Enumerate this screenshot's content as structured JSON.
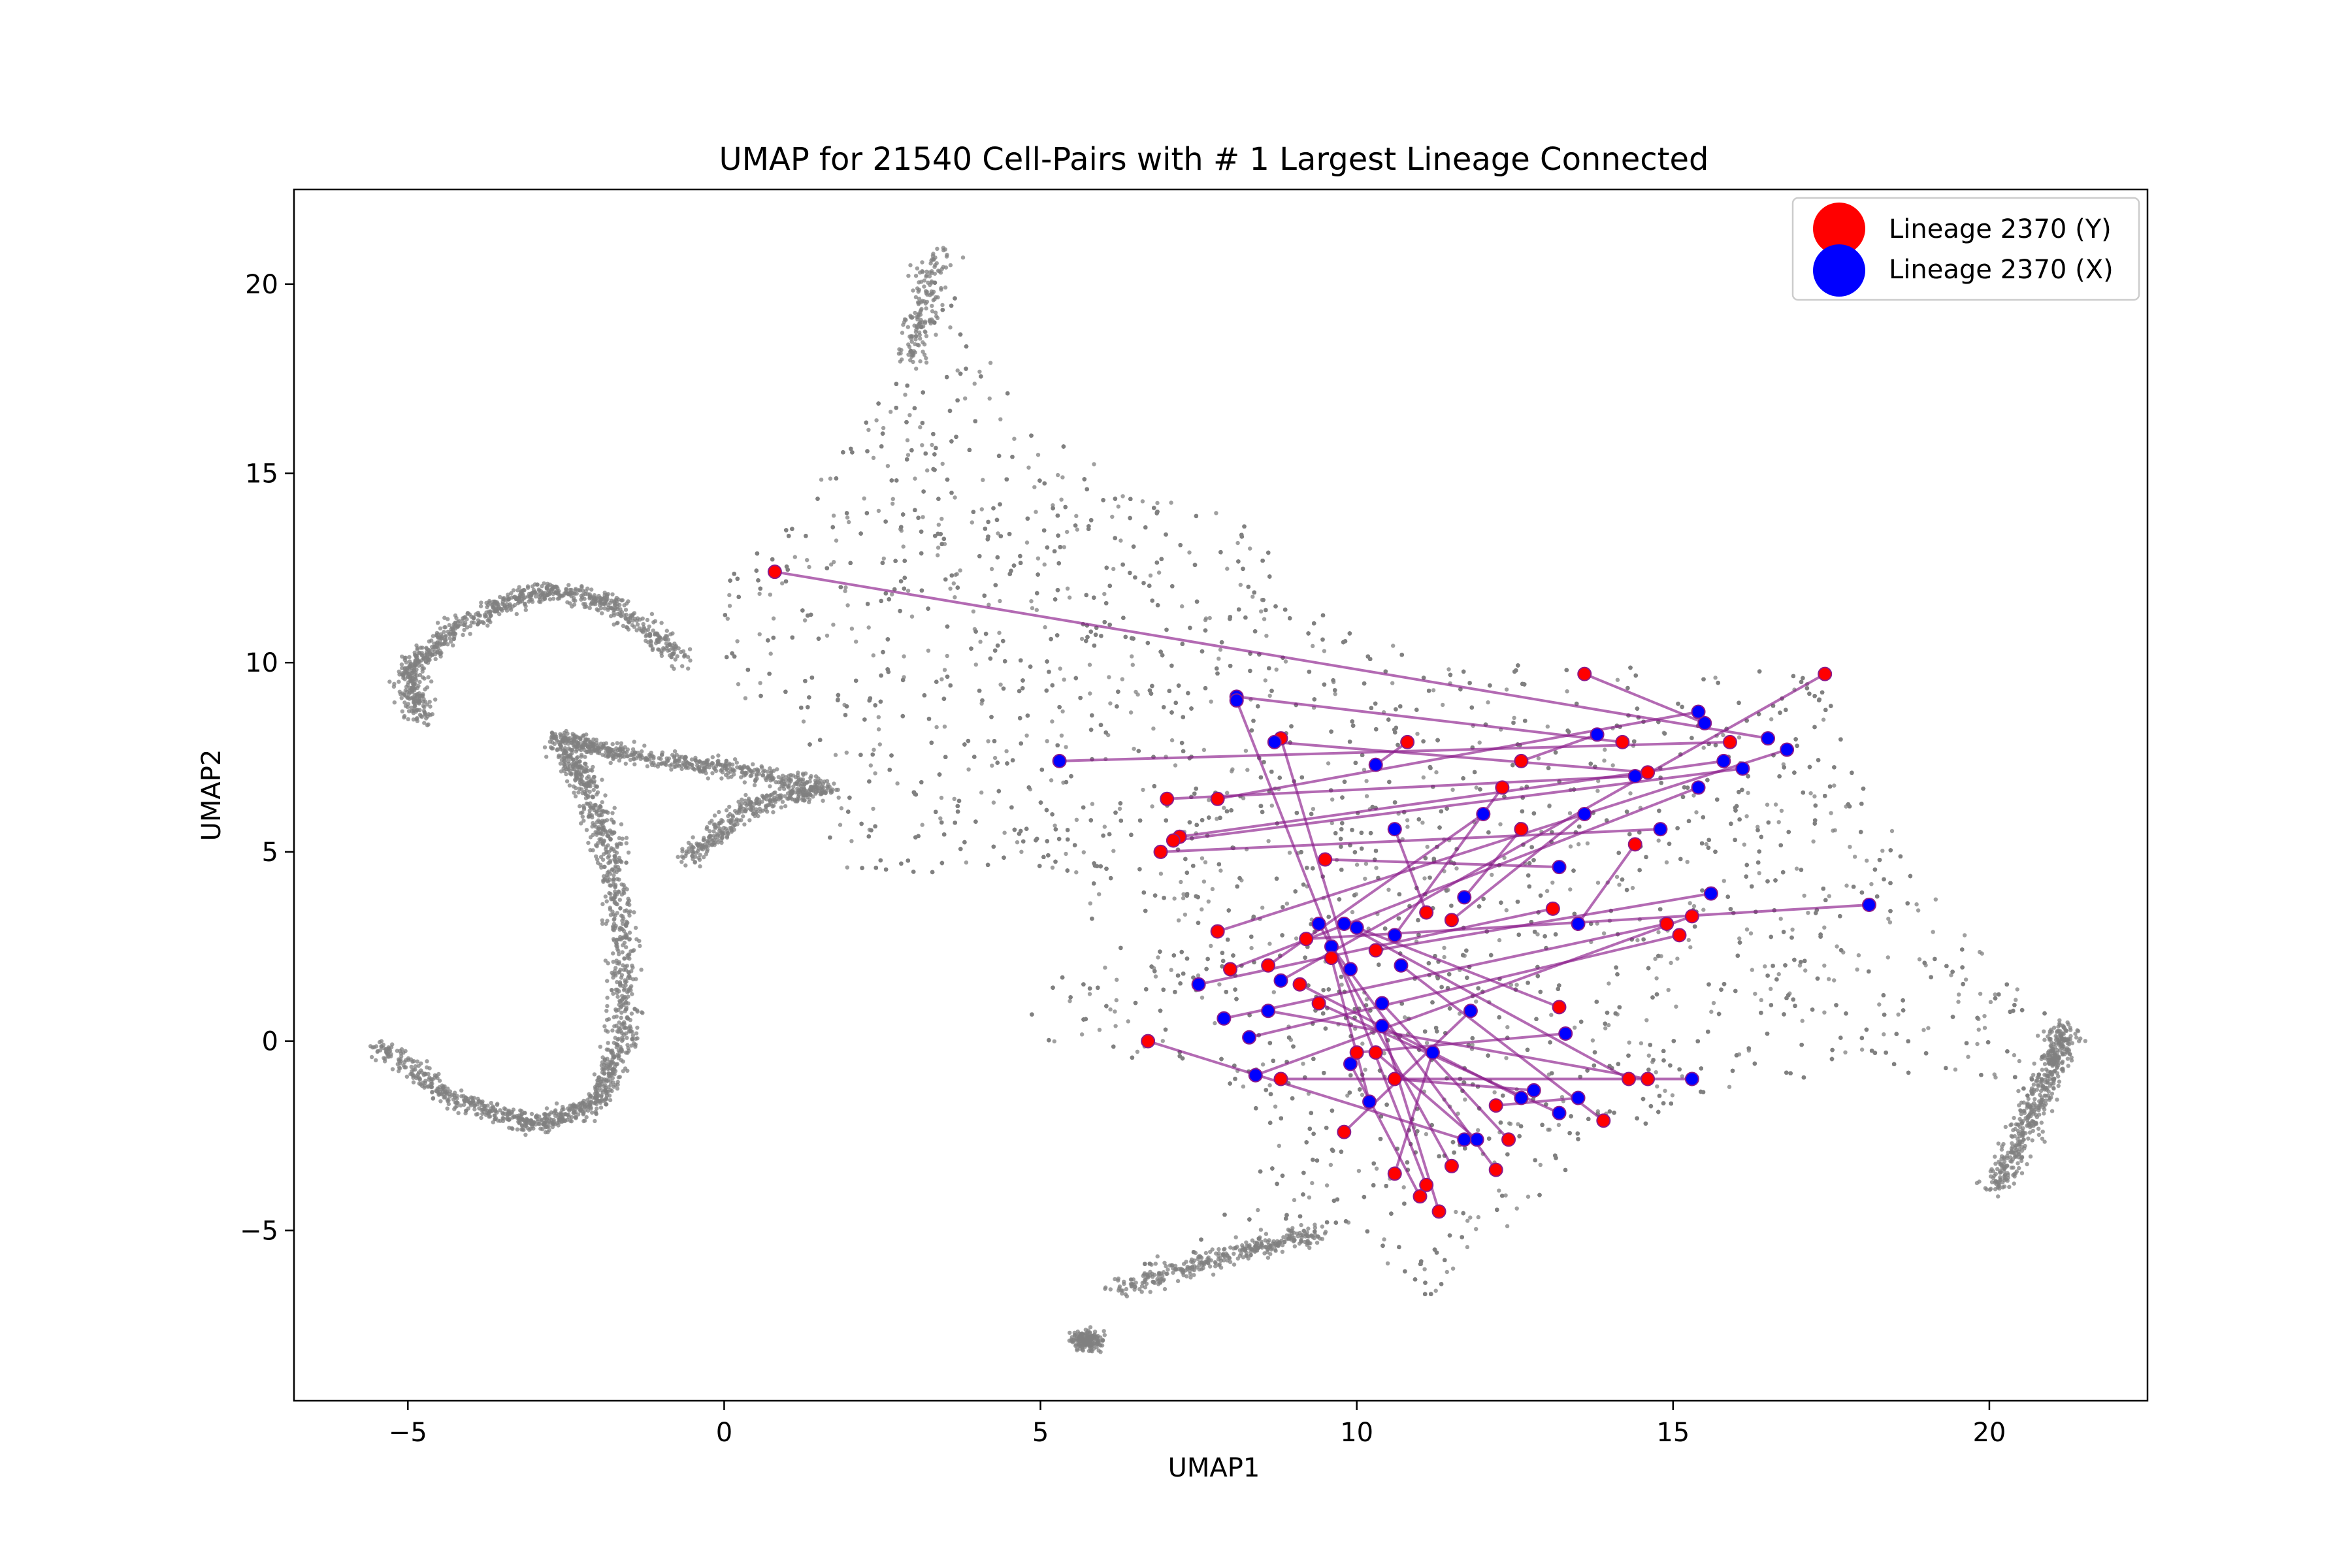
{
  "chart_data": {
    "type": "scatter",
    "title": "UMAP for 21540 Cell-Pairs with # 1 Largest Lineage Connected",
    "xlabel": "UMAP1",
    "ylabel": "UMAP2",
    "xlim": [
      -6.8,
      22.5
    ],
    "ylim": [
      -9.5,
      22.5
    ],
    "xticks": [
      -5,
      0,
      5,
      10,
      15,
      20
    ],
    "yticks": [
      -5,
      0,
      5,
      10,
      15,
      20
    ],
    "xtick_labels": [
      "−5",
      "0",
      "5",
      "10",
      "15",
      "20"
    ],
    "ytick_labels": [
      "−5",
      "0",
      "5",
      "10",
      "15",
      "20"
    ],
    "legend_position": "top-right",
    "background": {
      "description_color": "#808080",
      "cell_count": 21540
    },
    "series": [
      {
        "name": "Lineage 2370 (Y)",
        "color": "#ff0000"
      },
      {
        "name": "Lineage 2370 (X)",
        "color": "#0000ff"
      }
    ],
    "connector_color": "#8b1a8b",
    "pairs": [
      {
        "y": [
          0.8,
          12.4
        ],
        "x": [
          16.5,
          8.0
        ]
      },
      {
        "y": [
          17.4,
          9.7
        ],
        "x": [
          8.8,
          1.6
        ]
      },
      {
        "y": [
          13.6,
          9.7
        ],
        "x": [
          15.5,
          8.4
        ]
      },
      {
        "y": [
          8.8,
          8.0
        ],
        "x": [
          9.9,
          1.9
        ]
      },
      {
        "y": [
          10.8,
          7.9
        ],
        "x": [
          10.3,
          7.3
        ]
      },
      {
        "y": [
          7.0,
          6.4
        ],
        "x": [
          14.4,
          7.0
        ]
      },
      {
        "y": [
          7.8,
          6.4
        ],
        "x": [
          15.4,
          8.7
        ]
      },
      {
        "y": [
          7.2,
          5.4
        ],
        "x": [
          15.8,
          7.4
        ]
      },
      {
        "y": [
          6.9,
          5.0
        ],
        "x": [
          14.8,
          5.6
        ]
      },
      {
        "y": [
          7.1,
          5.3
        ],
        "x": [
          16.1,
          7.2
        ]
      },
      {
        "y": [
          9.5,
          4.8
        ],
        "x": [
          13.2,
          4.6
        ]
      },
      {
        "y": [
          12.6,
          7.4
        ],
        "x": [
          13.8,
          8.1
        ]
      },
      {
        "y": [
          14.6,
          7.1
        ],
        "x": [
          8.7,
          7.9
        ]
      },
      {
        "y": [
          14.2,
          7.9
        ],
        "x": [
          8.1,
          9.1
        ]
      },
      {
        "y": [
          15.9,
          7.9
        ],
        "x": [
          5.3,
          7.4
        ]
      },
      {
        "y": [
          7.8,
          2.9
        ],
        "x": [
          16.8,
          7.7
        ]
      },
      {
        "y": [
          8.0,
          1.9
        ],
        "x": [
          15.4,
          6.7
        ]
      },
      {
        "y": [
          8.6,
          2.0
        ],
        "x": [
          12.0,
          6.0
        ]
      },
      {
        "y": [
          9.2,
          2.7
        ],
        "x": [
          18.1,
          3.6
        ]
      },
      {
        "y": [
          10.3,
          2.4
        ],
        "x": [
          15.6,
          3.9
        ]
      },
      {
        "y": [
          11.1,
          3.4
        ],
        "x": [
          10.6,
          5.6
        ]
      },
      {
        "y": [
          11.5,
          3.2
        ],
        "x": [
          13.6,
          6.0
        ]
      },
      {
        "y": [
          12.3,
          6.7
        ],
        "x": [
          10.6,
          2.8
        ]
      },
      {
        "y": [
          12.6,
          5.6
        ],
        "x": [
          11.7,
          3.8
        ]
      },
      {
        "y": [
          13.1,
          3.5
        ],
        "x": [
          7.5,
          1.5
        ]
      },
      {
        "y": [
          14.4,
          5.2
        ],
        "x": [
          13.5,
          3.1
        ]
      },
      {
        "y": [
          14.9,
          3.1
        ],
        "x": [
          7.9,
          0.6
        ]
      },
      {
        "y": [
          15.1,
          2.8
        ],
        "x": [
          8.3,
          0.1
        ]
      },
      {
        "y": [
          15.3,
          3.3
        ],
        "x": [
          8.4,
          -0.9
        ]
      },
      {
        "y": [
          13.2,
          0.9
        ],
        "x": [
          10.0,
          3.0
        ]
      },
      {
        "y": [
          14.3,
          -1.0
        ],
        "x": [
          9.8,
          3.1
        ]
      },
      {
        "y": [
          14.6,
          -1.0
        ],
        "x": [
          8.6,
          0.8
        ]
      },
      {
        "y": [
          13.9,
          -2.1
        ],
        "x": [
          10.7,
          2.0
        ]
      },
      {
        "y": [
          12.4,
          -2.6
        ],
        "x": [
          10.4,
          1.0
        ]
      },
      {
        "y": [
          12.2,
          -3.4
        ],
        "x": [
          9.6,
          2.5
        ]
      },
      {
        "y": [
          11.5,
          -3.3
        ],
        "x": [
          9.4,
          3.1
        ]
      },
      {
        "y": [
          11.1,
          -3.8
        ],
        "x": [
          8.1,
          9.0
        ]
      },
      {
        "y": [
          11.3,
          -4.5
        ],
        "x": [
          10.4,
          0.4
        ]
      },
      {
        "y": [
          11.0,
          -4.1
        ],
        "x": [
          9.9,
          -0.6
        ]
      },
      {
        "y": [
          10.6,
          -3.5
        ],
        "x": [
          11.2,
          -0.3
        ]
      },
      {
        "y": [
          9.8,
          -2.4
        ],
        "x": [
          11.8,
          0.8
        ]
      },
      {
        "y": [
          10.3,
          -0.3
        ],
        "x": [
          11.9,
          -2.6
        ]
      },
      {
        "y": [
          10.6,
          -1.0
        ],
        "x": [
          12.8,
          -1.3
        ]
      },
      {
        "y": [
          12.2,
          -1.7
        ],
        "x": [
          13.5,
          -1.5
        ]
      },
      {
        "y": [
          10.0,
          -0.3
        ],
        "x": [
          13.3,
          0.2
        ]
      },
      {
        "y": [
          8.8,
          -1.0
        ],
        "x": [
          15.3,
          -1.0
        ]
      },
      {
        "y": [
          6.7,
          0.0
        ],
        "x": [
          11.7,
          -2.6
        ]
      },
      {
        "y": [
          9.4,
          1.0
        ],
        "x": [
          13.2,
          -1.9
        ]
      },
      {
        "y": [
          9.1,
          1.5
        ],
        "x": [
          12.6,
          -1.5
        ]
      },
      {
        "y": [
          9.6,
          2.2
        ],
        "x": [
          10.2,
          -1.6
        ]
      }
    ]
  }
}
